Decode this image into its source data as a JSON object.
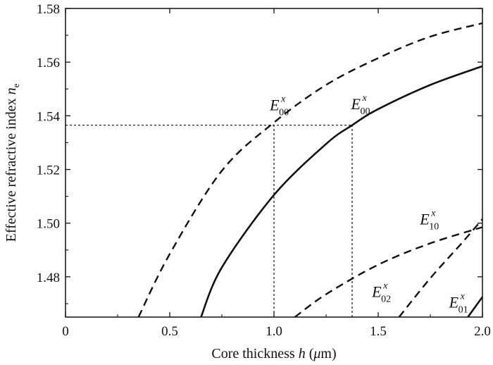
{
  "chart_data": {
    "type": "line",
    "xlabel": {
      "prefix": "Core thickness ",
      "var": "h",
      "open": " (",
      "unit_mu": "μ",
      "unit_rest": "m)"
    },
    "ylabel": {
      "prefix": "Effective refractive index ",
      "var": "n",
      "sub": "e"
    },
    "xlim": [
      0,
      2.0
    ],
    "ylim": [
      1.465,
      1.58
    ],
    "xticks": [
      0,
      0.5,
      1.0,
      1.5,
      2.0
    ],
    "xtick_labels": [
      "0",
      "0.5",
      "1.0",
      "1.5",
      "2.0"
    ],
    "yticks": [
      1.48,
      1.5,
      1.52,
      1.54,
      1.56,
      1.58
    ],
    "ytick_labels": [
      "1.48",
      "1.50",
      "1.52",
      "1.54",
      "1.56",
      "1.58"
    ],
    "grid": false,
    "legend": "none",
    "series": [
      {
        "style": "dashed",
        "x": [
          0.35,
          0.5,
          0.75,
          1.0,
          1.25,
          1.5,
          1.75,
          2.0
        ],
        "y": [
          1.465,
          1.4885,
          1.5195,
          1.5375,
          1.5515,
          1.5615,
          1.5695,
          1.5745
        ]
      },
      {
        "style": "solid",
        "x": [
          0.65,
          0.75,
          1.0,
          1.25,
          1.375,
          1.5,
          1.75,
          2.0
        ],
        "y": [
          1.465,
          1.4835,
          1.5105,
          1.5295,
          1.5365,
          1.5425,
          1.5515,
          1.5585
        ]
      },
      {
        "style": "dashed",
        "x": [
          1.1,
          1.25,
          1.5,
          1.75,
          2.0
        ],
        "y": [
          1.465,
          1.4735,
          1.4845,
          1.4925,
          1.4985
        ]
      },
      {
        "style": "dashed",
        "x": [
          1.6,
          1.75,
          1.9,
          2.0
        ],
        "y": [
          1.465,
          1.4795,
          1.4925,
          1.5015
        ]
      },
      {
        "style": "solid",
        "x": [
          1.93,
          2.0
        ],
        "y": [
          1.465,
          1.4725
        ]
      }
    ],
    "reference_lines": [
      {
        "style": "dotted",
        "x": [
          0,
          1.375
        ],
        "y": [
          1.5365,
          1.5365
        ]
      },
      {
        "style": "dotted",
        "x": [
          1.0,
          1.0
        ],
        "y": [
          1.465,
          1.5365
        ]
      },
      {
        "style": "dotted",
        "x": [
          1.375,
          1.375
        ],
        "y": [
          1.465,
          1.5365
        ]
      }
    ],
    "annotations": [
      {
        "base": "E",
        "sup": "x",
        "sub": "00",
        "x": 0.98,
        "y": 1.542
      },
      {
        "base": "E",
        "sup": "x",
        "sub": "00",
        "x": 1.37,
        "y": 1.5425
      },
      {
        "base": "E",
        "sup": "x",
        "sub": "10",
        "x": 1.7,
        "y": 1.4995
      },
      {
        "base": "E",
        "sup": "x",
        "sub": "02",
        "x": 1.47,
        "y": 1.4725
      },
      {
        "base": "E",
        "sup": "x",
        "sub": "01",
        "x": 1.84,
        "y": 1.4685
      }
    ]
  }
}
